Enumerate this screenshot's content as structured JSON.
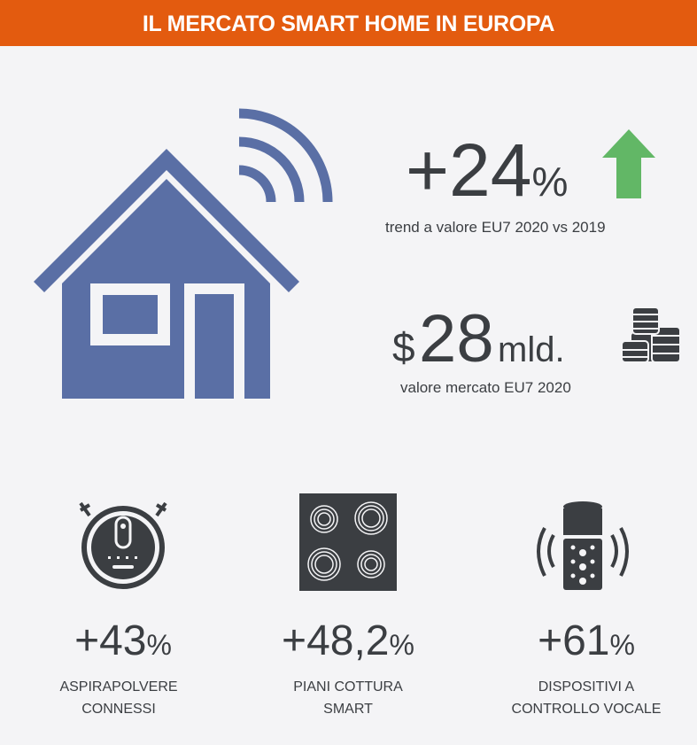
{
  "header": {
    "title": "IL MERCATO SMART HOME IN EUROPA"
  },
  "colors": {
    "header": "#e35b0f",
    "house": "#5a6fa5",
    "icons": "#3b3e42",
    "arrow": "#62b766",
    "background": "#f4f4f6"
  },
  "trend": {
    "value": "+24",
    "unit": "%",
    "caption": "trend a valore EU7 2020 vs 2019",
    "icon": "arrow-up-icon"
  },
  "market": {
    "currency": "$",
    "value": "28",
    "unit": "mld.",
    "caption": "valore mercato EU7 2020",
    "icon": "coins-icon"
  },
  "categories": [
    {
      "value": "+43",
      "unit": "%",
      "line1": "ASPIRAPOLVERE",
      "line2": "CONNESSI",
      "icon": "robot-vacuum-icon"
    },
    {
      "value": "+48,2",
      "unit": "%",
      "line1": "PIANI COTTURA",
      "line2": "SMART",
      "icon": "cooktop-icon"
    },
    {
      "value": "+61",
      "unit": "%",
      "line1": "DISPOSITIVI A",
      "line2": "CONTROLLO VOCALE",
      "icon": "smart-speaker-icon"
    }
  ]
}
